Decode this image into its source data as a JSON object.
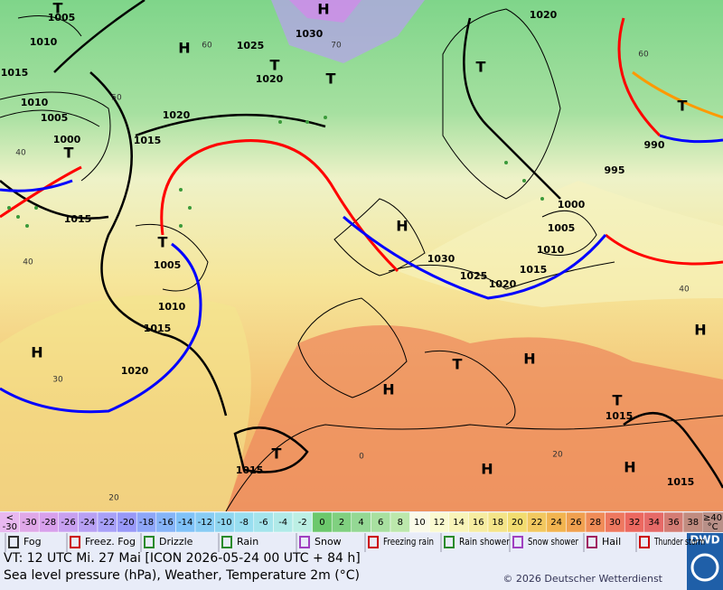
{
  "map": {
    "pressure_labels": [
      "1005",
      "1010",
      "1015",
      "1010",
      "1005",
      "1000",
      "1015",
      "1025",
      "1030",
      "1020",
      "1020",
      "1015",
      "1005",
      "1010",
      "1015",
      "1020",
      "1015",
      "1020",
      "1030",
      "1025",
      "1020",
      "1015",
      "1000",
      "1005",
      "1010",
      "995",
      "990",
      "1015",
      "1015"
    ],
    "centers": [
      "H",
      "H",
      "T",
      "T",
      "T",
      "T",
      "T",
      "H",
      "T",
      "H",
      "H",
      "T",
      "H",
      "T",
      "H",
      "H",
      "H",
      "T",
      "T"
    ],
    "temperature_labels": [
      "60",
      "50",
      "40",
      "40",
      "30",
      "20",
      "70",
      "60",
      "0",
      "20",
      "40"
    ]
  },
  "colorbar": {
    "below": [
      "<",
      "-30"
    ],
    "steps": [
      -30,
      -28,
      -26,
      -24,
      -22,
      -20,
      -18,
      -16,
      -14,
      -12,
      -10,
      -8,
      -6,
      -4,
      -2,
      0,
      2,
      4,
      6,
      8,
      10,
      12,
      14,
      16,
      18,
      20,
      22,
      24,
      26,
      28,
      30,
      32,
      34,
      36,
      38
    ],
    "colors": [
      "#e0a8e8",
      "#d8a0ec",
      "#c8a0f0",
      "#b8a0f4",
      "#a8a0f8",
      "#9898f8",
      "#8ea6f8",
      "#86b4f8",
      "#80c2f8",
      "#88ccf4",
      "#90d6f0",
      "#98def0",
      "#a4e4ec",
      "#b0eae8",
      "#bcefe4",
      "#6cc86c",
      "#80d080",
      "#94d894",
      "#a8e0a0",
      "#bce8ac",
      "#fafae8",
      "#fafad0",
      "#f8f4b8",
      "#f6eca0",
      "#f4e488",
      "#f2dc70",
      "#f2c860",
      "#f2b450",
      "#f0a050",
      "#f08c58",
      "#ee7860",
      "#ec6860",
      "#e66a68",
      "#d47c74",
      "#c08c80"
    ],
    "above": [
      "≥40",
      "°C"
    ]
  },
  "legend": [
    "Fog",
    "Freez. Fog",
    "Drizzle",
    "Rain",
    "Snow",
    "Freezing rain",
    "Rain shower",
    "Snow shower",
    "Hail",
    "Thunder storm"
  ],
  "footer": {
    "valid_time": "VT: 12 UTC Mi.  27 Mai [ICON 2026-05-24  00 UTC + 84 h]",
    "description": "Sea level pressure (hPa), Weather, Temperature 2m (°C)",
    "copyright": "© 2026 Deutscher Wetterdienst",
    "logo": "DWD"
  }
}
